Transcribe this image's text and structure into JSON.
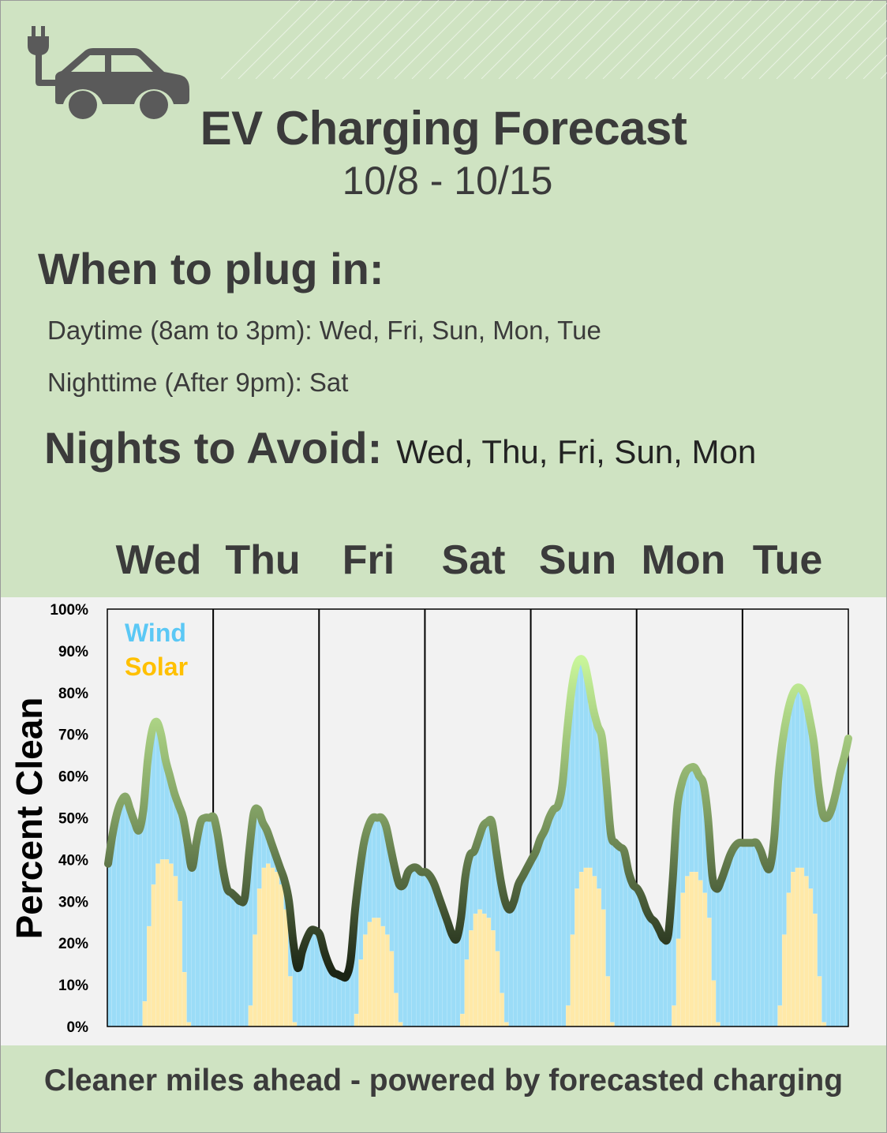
{
  "header": {
    "title": "EV Charging Forecast",
    "date_range": "10/8  -  10/15",
    "icon": "ev-car-plug-icon"
  },
  "plug_in": {
    "heading": "When to plug in:",
    "daytime": "Daytime (8am to 3pm): Wed, Fri, Sun, Mon, Tue",
    "nighttime": "Nighttime  (After 9pm): Sat"
  },
  "avoid": {
    "heading": "Nights to Avoid:",
    "days": "Wed, Thu, Fri, Sun, Mon"
  },
  "day_labels": [
    "Wed",
    "Thu",
    "Fri",
    "Sat",
    "Sun",
    "Mon",
    "Tue"
  ],
  "footer": "Cleaner miles ahead - powered by forecasted charging",
  "colors": {
    "background": "#cfe3c2",
    "chart_bg": "#f2f2f2",
    "wind": "#9bdcf7",
    "wind_legend": "#5bc8f5",
    "solar": "#ffe9a8",
    "solar_legend": "#ffc000",
    "line_high": "#c8f59a",
    "line_low": "#1b2414",
    "text": "#3b3b3b"
  },
  "chart_data": {
    "type": "bar",
    "title": "",
    "xlabel": "",
    "ylabel": "Percent Clean",
    "ylim": [
      0,
      100
    ],
    "yticks": [
      "0%",
      "10%",
      "20%",
      "30%",
      "40%",
      "50%",
      "60%",
      "70%",
      "80%",
      "90%",
      "100%"
    ],
    "categories": [
      "Wed",
      "Thu",
      "Fri",
      "Sat",
      "Sun",
      "Mon",
      "Tue"
    ],
    "hours_per_day": 24,
    "legend": [
      {
        "name": "Wind"
      },
      {
        "name": "Solar"
      }
    ],
    "legend_position": "top-left",
    "series": [
      {
        "name": "Total clean (line)",
        "unit": "%",
        "values_by_day": [
          [
            39,
            46,
            51,
            54,
            55,
            52,
            49,
            47,
            52,
            64,
            71,
            73,
            70,
            64,
            60,
            56,
            53,
            50,
            44,
            38,
            44,
            49,
            50,
            50
          ],
          [
            50,
            45,
            38,
            33,
            32,
            31,
            30,
            31,
            42,
            51,
            52,
            49,
            47,
            44,
            41,
            38,
            35,
            30,
            20,
            14,
            18,
            21,
            23,
            23
          ],
          [
            22,
            18,
            15,
            13,
            12.5,
            12,
            12,
            16,
            28,
            37,
            44,
            48,
            50,
            50,
            50,
            48,
            43,
            38,
            34,
            34,
            37,
            38,
            38,
            37
          ],
          [
            37,
            36,
            34,
            31,
            28,
            25,
            22,
            21,
            26,
            36,
            41,
            42,
            45,
            48,
            49,
            49,
            42,
            35,
            30,
            28,
            30,
            34,
            36,
            38
          ],
          [
            40,
            42,
            45,
            47,
            50,
            52,
            53,
            58,
            70,
            80,
            86,
            88,
            87,
            82,
            76,
            72,
            69,
            58,
            46,
            44,
            43,
            42,
            37,
            34
          ],
          [
            33,
            31,
            28,
            26,
            25,
            23,
            21,
            22,
            35,
            52,
            58,
            61,
            62,
            62,
            60,
            58,
            50,
            36,
            33,
            35,
            38,
            41,
            43,
            44
          ],
          [
            44,
            44,
            44,
            44,
            42,
            39,
            38,
            45,
            60,
            69,
            75,
            79,
            81,
            81,
            79,
            74,
            68,
            58,
            51,
            50,
            52,
            56,
            61,
            65
          ]
        ],
        "end_value": 69
      },
      {
        "name": "Solar",
        "unit": "%",
        "start_hour": 8,
        "values_by_day": [
          [
            6,
            24,
            34,
            39,
            40,
            40,
            39,
            36,
            30,
            13,
            1
          ],
          [
            5,
            22,
            33,
            38,
            39,
            38,
            37,
            34,
            28,
            12,
            1
          ],
          [
            3,
            16,
            22,
            25,
            26,
            26,
            24,
            22,
            18,
            8,
            1
          ],
          [
            3,
            16,
            23,
            27,
            28,
            27,
            26,
            23,
            18,
            8,
            1
          ],
          [
            5,
            22,
            33,
            37,
            38,
            38,
            36,
            33,
            28,
            12,
            1
          ],
          [
            5,
            21,
            32,
            36,
            37,
            37,
            35,
            32,
            26,
            11,
            1
          ],
          [
            5,
            22,
            32,
            37,
            38,
            38,
            36,
            33,
            27,
            12,
            1
          ]
        ]
      },
      {
        "name": "Wind",
        "unit": "%",
        "note": "total minus solar"
      }
    ]
  }
}
